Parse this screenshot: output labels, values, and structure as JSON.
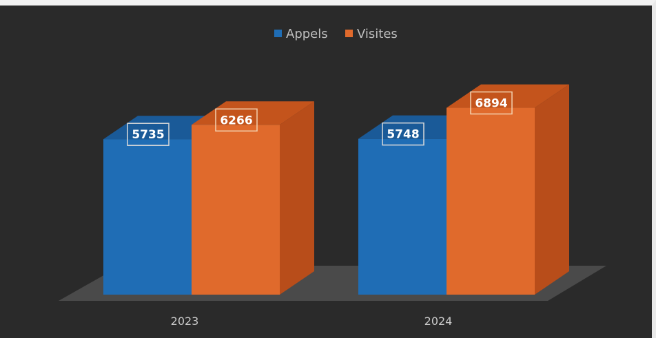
{
  "chart_data": {
    "type": "bar",
    "style": "3d-clustered-column",
    "categories": [
      "2023",
      "2024"
    ],
    "series": [
      {
        "name": "Appels",
        "values": [
          5735,
          5748
        ],
        "color": "#1f6db5"
      },
      {
        "name": "Visites",
        "values": [
          6266,
          6894
        ],
        "color": "#e06a2c"
      }
    ],
    "legend_position": "top",
    "data_labels": true,
    "grid": false,
    "axis_visible": false
  },
  "colors": {
    "background": "#2a2a2a",
    "floor": "#4a4a4a",
    "appels_front": "#1f6db5",
    "appels_top": "#1a5a98",
    "appels_side": "#184f86",
    "visites_front": "#e06a2c",
    "visites_top": "#c4541c",
    "visites_side": "#b84d1a"
  }
}
